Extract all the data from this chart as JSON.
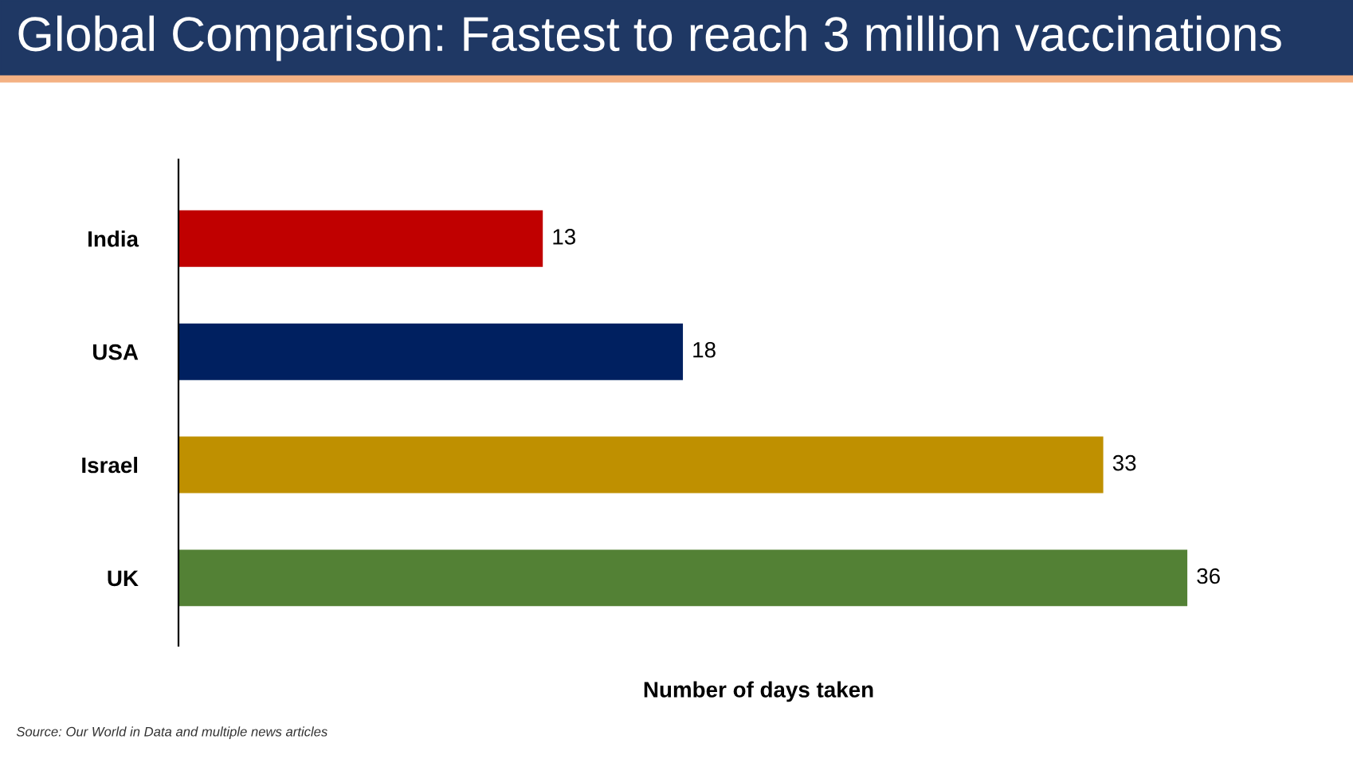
{
  "chart_data": {
    "type": "bar",
    "orientation": "horizontal",
    "title": "Global Comparison: Fastest to reach 3 million vaccinations",
    "categories": [
      "India",
      "USA",
      "Israel",
      "UK"
    ],
    "values": [
      13,
      18,
      33,
      36
    ],
    "colors": [
      "#c00000",
      "#002060",
      "#bf9000",
      "#538135"
    ],
    "xlabel": "Number of days taken",
    "data_labels": true,
    "tick_labels": "y",
    "grid": false,
    "legend": false,
    "annotations": [
      "Source: Our World in Data and multiple news articles"
    ]
  }
}
